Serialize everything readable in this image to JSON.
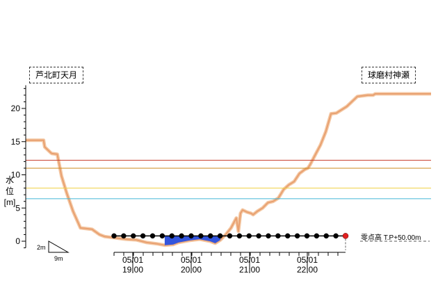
{
  "locations": {
    "left": "芦北町天月",
    "right": "球磨村神瀬"
  },
  "y_axis_label": [
    "水",
    "位",
    "[m]"
  ],
  "zero_point_label": "零点高 T.P+50.00m",
  "scale": {
    "vertical": "2m",
    "horizontal": "9m"
  },
  "colors": {
    "river_profile": "#e8a070",
    "river_profile_fill": "#f4c8a4",
    "water": "#3355dd",
    "level_red": "#c84030",
    "level_orange": "#cc8a1a",
    "level_yellow": "#f0d040",
    "level_cyan": "#40b8d8",
    "marker_normal": "#000000",
    "marker_latest": "#e02020"
  },
  "chart_data": {
    "type": "line",
    "title": "",
    "xlabel": "",
    "ylabel": "水位[m]",
    "ylim": [
      0,
      22
    ],
    "yticks": [
      0,
      5,
      10,
      15,
      20
    ],
    "grid": false,
    "reference_lines": [
      {
        "value": 12.2,
        "color": "#c84030"
      },
      {
        "value": 11.0,
        "color": "#cc8a1a"
      },
      {
        "value": 8.0,
        "color": "#f0d040"
      },
      {
        "value": 6.4,
        "color": "#40b8d8"
      }
    ],
    "time_ticks": [
      {
        "date": "05/01",
        "time": "19:00"
      },
      {
        "date": "05/01",
        "time": "20:00"
      },
      {
        "date": "05/01",
        "time": "21:00"
      },
      {
        "date": "05/01",
        "time": "22:00"
      }
    ],
    "observation_points": 25,
    "latest_point_index": 24,
    "water_level": 0.8,
    "river_profile": {
      "x": [
        0,
        0.4,
        1.7,
        1.8,
        2.4,
        2.5,
        3.0,
        3.4,
        3.9,
        4.5,
        5.2,
        6.3,
        7.0,
        7.5,
        8.5,
        9.5,
        10.5,
        11.5,
        12.5,
        13.2,
        14.0,
        14.5,
        15.5,
        16.5,
        17.5,
        18.0,
        18.5,
        19.0,
        19.5,
        20.0,
        20.2,
        20.4,
        20.6,
        21.0,
        21.4,
        21.6,
        22.0,
        22.5,
        23.0,
        23.5,
        24.0,
        24.5,
        25.0,
        25.5,
        26.0,
        26.5,
        26.8,
        27.0,
        27.5,
        28.0,
        28.5,
        29.0,
        29.5,
        30.5,
        31.5,
        32.5,
        33.0,
        33.2,
        33.6,
        34.2,
        35.2,
        36.5,
        38.0,
        38.5
      ],
      "y": [
        15.2,
        15.2,
        15.2,
        14.2,
        13.3,
        13.2,
        13.1,
        9.8,
        7.2,
        4.5,
        2.0,
        1.8,
        1.0,
        0.7,
        0.5,
        0.3,
        0.2,
        -0.2,
        -0.4,
        -0.6,
        -0.5,
        -0.2,
        0.1,
        0.3,
        0.0,
        -0.3,
        0.2,
        1.0,
        2.0,
        3.5,
        1.5,
        4.2,
        4.7,
        4.4,
        4.2,
        4.0,
        4.5,
        5.0,
        5.8,
        6.0,
        6.5,
        7.8,
        8.5,
        9.0,
        10.2,
        10.8,
        11.0,
        11.5,
        13.0,
        14.5,
        16.5,
        19.2,
        19.3,
        20.3,
        21.8,
        22.0,
        22.0,
        22.2,
        22.2,
        22.2,
        22.2,
        22.2,
        22.2,
        22.2
      ]
    }
  }
}
